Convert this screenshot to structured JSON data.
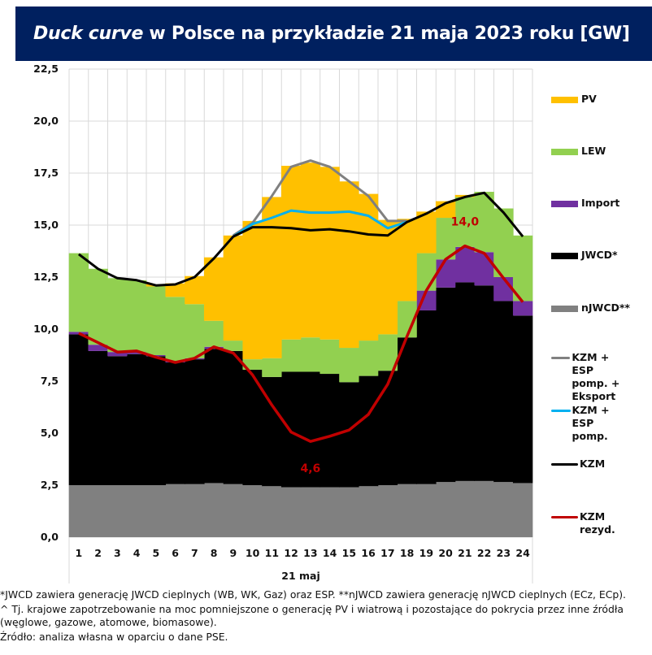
{
  "header": {
    "title_italic": "Duck curve",
    "title_rest": " w Polsce na przykładzie 21 maja 2023 roku [GW]"
  },
  "chart_data": {
    "type": "area",
    "title": "Duck curve w Polsce na przykładzie 21 maja 2023 roku [GW]",
    "xlabel": "21 maj",
    "ylabel": "",
    "ylim": [
      0,
      22.5
    ],
    "yticks": [
      "0,0",
      "2,5",
      "5,0",
      "7,5",
      "10,0",
      "12,5",
      "15,0",
      "17,5",
      "20,0",
      "22,5"
    ],
    "ytick_values": [
      0,
      2.5,
      5,
      7.5,
      10,
      12.5,
      15,
      17.5,
      20,
      22.5
    ],
    "categories": [
      "1",
      "2",
      "3",
      "4",
      "5",
      "6",
      "7",
      "8",
      "9",
      "10",
      "11",
      "12",
      "13",
      "14",
      "15",
      "16",
      "17",
      "18",
      "19",
      "20",
      "21",
      "22",
      "23",
      "24"
    ],
    "grid": true,
    "legend_position": "right",
    "stacked_series": [
      {
        "name": "nJWCD**",
        "color": "#808080",
        "values": [
          2.5,
          2.5,
          2.5,
          2.5,
          2.5,
          2.55,
          2.55,
          2.6,
          2.55,
          2.5,
          2.45,
          2.4,
          2.4,
          2.4,
          2.4,
          2.45,
          2.5,
          2.55,
          2.55,
          2.65,
          2.7,
          2.7,
          2.65,
          2.6
        ]
      },
      {
        "name": "JWCD*",
        "color": "#000000",
        "values": [
          7.25,
          6.45,
          6.2,
          6.3,
          6.2,
          5.85,
          6.0,
          6.45,
          6.4,
          5.55,
          5.25,
          5.55,
          5.55,
          5.45,
          5.05,
          5.3,
          5.5,
          7.05,
          8.35,
          9.35,
          9.55,
          9.4,
          8.7,
          8.05
        ]
      },
      {
        "name": "Import",
        "color": "#7030a0",
        "values": [
          0.12,
          0.3,
          0.2,
          0.1,
          0.05,
          0.05,
          0.05,
          0.1,
          0,
          0,
          0,
          0,
          0,
          0,
          0,
          0,
          0,
          0,
          0.95,
          1.35,
          1.7,
          1.6,
          1.15,
          0.7
        ]
      },
      {
        "name": "LEW",
        "color": "#92d050",
        "values": [
          3.78,
          3.65,
          3.55,
          3.45,
          3.3,
          3.1,
          2.6,
          1.25,
          0.5,
          0.5,
          0.9,
          1.55,
          1.65,
          1.65,
          1.65,
          1.7,
          1.75,
          1.75,
          1.8,
          2.0,
          2.4,
          2.9,
          3.3,
          3.15
        ]
      },
      {
        "name": "PV",
        "color": "#ffc000",
        "values": [
          0,
          0,
          0,
          0,
          0.1,
          0.65,
          1.35,
          3.05,
          5.05,
          6.65,
          7.75,
          8.35,
          8.4,
          8.3,
          8.0,
          7.05,
          5.5,
          3.95,
          2.0,
          0.8,
          0.1,
          0,
          0,
          0
        ]
      }
    ],
    "line_series": [
      {
        "name": "KZM + ESP pomp. + Eksport",
        "color": "#808080",
        "values": [
          null,
          null,
          null,
          null,
          null,
          null,
          null,
          null,
          14.5,
          15.1,
          16.4,
          17.8,
          18.1,
          17.8,
          17.1,
          16.4,
          15.2,
          15.2,
          null,
          null,
          null,
          null,
          null,
          null
        ]
      },
      {
        "name": "KZM + ESP pomp.",
        "color": "#00b0f0",
        "values": [
          null,
          null,
          null,
          null,
          null,
          null,
          null,
          null,
          14.45,
          15.05,
          15.35,
          15.7,
          15.6,
          15.6,
          15.65,
          15.45,
          14.85,
          15.15,
          null,
          null,
          null,
          null,
          null,
          null
        ]
      },
      {
        "name": "KZM",
        "color": "#000000",
        "values": [
          13.6,
          12.9,
          12.45,
          12.35,
          12.1,
          12.15,
          12.5,
          13.4,
          14.45,
          14.9,
          14.9,
          14.85,
          14.75,
          14.8,
          14.7,
          14.55,
          14.5,
          15.15,
          15.55,
          16.05,
          16.35,
          16.55,
          15.6,
          14.45
        ]
      },
      {
        "name": "KZM rezyd.",
        "color": "#c00000",
        "values": [
          9.8,
          9.35,
          8.9,
          8.95,
          8.65,
          8.4,
          8.6,
          9.15,
          8.85,
          7.8,
          6.35,
          5.05,
          4.6,
          4.85,
          5.15,
          5.9,
          7.35,
          9.65,
          11.85,
          13.35,
          14.0,
          13.65,
          12.45,
          11.3
        ]
      }
    ],
    "annotations": [
      {
        "text": "4,6",
        "x": "13",
        "y": 4.6,
        "color": "#c00000"
      },
      {
        "text": "14,0",
        "x": "21",
        "y": 14.0,
        "color": "#c00000"
      }
    ]
  },
  "legend": {
    "items": [
      {
        "label": "PV",
        "kind": "area",
        "color": "#ffc000"
      },
      {
        "label": "LEW",
        "kind": "area",
        "color": "#92d050"
      },
      {
        "label": "Import",
        "kind": "area",
        "color": "#7030a0"
      },
      {
        "label": "JWCD*",
        "kind": "area",
        "color": "#000000"
      },
      {
        "label": "nJWCD**",
        "kind": "area",
        "color": "#808080"
      },
      {
        "label": "KZM +\nESP pomp. +\nEksport",
        "kind": "line",
        "color": "#808080"
      },
      {
        "label": "KZM +\nESP pomp.",
        "kind": "line",
        "color": "#00b0f0"
      },
      {
        "label": "KZM",
        "kind": "line",
        "color": "#000000"
      },
      {
        "label": "KZM\nrezyd.",
        "kind": "line",
        "color": "#c00000"
      }
    ]
  },
  "footnotes": {
    "line1": "*JWCD zawiera generację JWCD cieplnych (WB, WK, Gaz) oraz ESP. **nJWCD zawiera generację nJWCD cieplnych (ECz, ECp).",
    "line2": "^ Tj. krajowe zapotrzebowanie na moc pomniejszone o generację PV i wiatrową i pozostające do pokrycia przez inne źródła (węglowe, gazowe, atomowe, biomasowe).",
    "source": "Źródło: analiza własna w oparciu o dane PSE."
  }
}
